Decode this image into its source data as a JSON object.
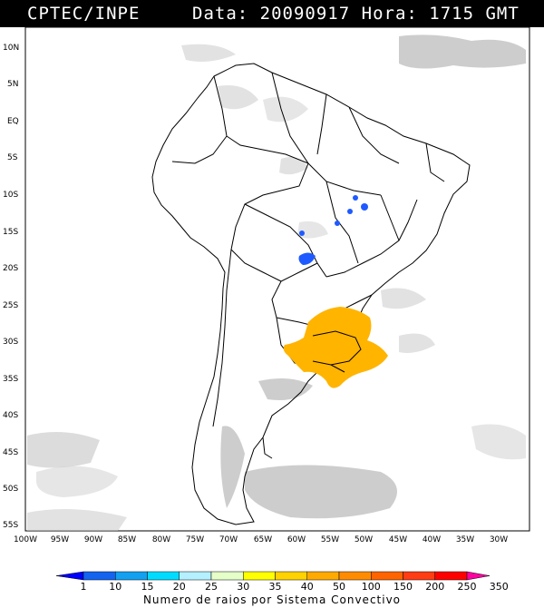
{
  "header": {
    "source": "CPTEC/INPE",
    "date_label": "Data:",
    "date_value": "20090917",
    "hour_label": "Hora:",
    "hour_value": "1715 GMT"
  },
  "map": {
    "region": "South America",
    "lat_labels": [
      "10N",
      "5N",
      "EQ",
      "5S",
      "10S",
      "15S",
      "20S",
      "25S",
      "30S",
      "35S",
      "40S",
      "45S",
      "50S",
      "55S"
    ],
    "lon_labels": [
      "100W",
      "95W",
      "90W",
      "85W",
      "80W",
      "75W",
      "70W",
      "65W",
      "60W",
      "55W",
      "50W",
      "45W",
      "40W",
      "35W",
      "30W"
    ],
    "background_color": "#ffffff",
    "cloud_color": "#bdbdbd",
    "border_color": "#000000"
  },
  "colorbar": {
    "ticks": [
      "1",
      "10",
      "15",
      "20",
      "25",
      "30",
      "35",
      "40",
      "50",
      "100",
      "150",
      "200",
      "250",
      "350"
    ],
    "colors": [
      "#0000ff",
      "#1464f0",
      "#14a0f0",
      "#00dcff",
      "#b4f0ff",
      "#e6ffc8",
      "#ffff00",
      "#ffd200",
      "#ffaa00",
      "#ff8c00",
      "#ff6400",
      "#ff3c14",
      "#ff0000",
      "#ff00a0"
    ],
    "caption": "Numero de raios por Sistema Convectivo"
  },
  "systems": [
    {
      "color": "#ffb400",
      "label": "large southern convective system"
    },
    {
      "color": "#0050ff",
      "label": "small central Brazil systems"
    }
  ]
}
